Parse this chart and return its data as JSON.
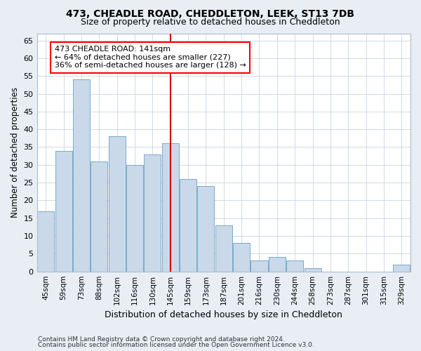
{
  "title1": "473, CHEADLE ROAD, CHEDDLETON, LEEK, ST13 7DB",
  "title2": "Size of property relative to detached houses in Cheddleton",
  "xlabel": "Distribution of detached houses by size in Cheddleton",
  "ylabel": "Number of detached properties",
  "footer1": "Contains HM Land Registry data © Crown copyright and database right 2024.",
  "footer2": "Contains public sector information licensed under the Open Government Licence v3.0.",
  "categories": [
    "45sqm",
    "59sqm",
    "73sqm",
    "88sqm",
    "102sqm",
    "116sqm",
    "130sqm",
    "145sqm",
    "159sqm",
    "173sqm",
    "187sqm",
    "201sqm",
    "216sqm",
    "230sqm",
    "244sqm",
    "258sqm",
    "273sqm",
    "287sqm",
    "301sqm",
    "315sqm",
    "329sqm"
  ],
  "values": [
    17,
    34,
    54,
    31,
    38,
    30,
    33,
    36,
    26,
    24,
    13,
    8,
    3,
    4,
    3,
    1,
    0,
    0,
    0,
    0,
    2
  ],
  "bar_color": "#c9d9ea",
  "bar_edge_color": "#7aaac8",
  "vline_color": "#cc0000",
  "annotation_title": "473 CHEADLE ROAD: 141sqm",
  "annotation_line1": "← 64% of detached houses are smaller (227)",
  "annotation_line2": "36% of semi-detached houses are larger (128) →",
  "ylim": [
    0,
    67
  ],
  "yticks": [
    0,
    5,
    10,
    15,
    20,
    25,
    30,
    35,
    40,
    45,
    50,
    55,
    60,
    65
  ],
  "bg_color": "#e8eef4",
  "plot_bg_color": "#ffffff",
  "grid_color": "#c8d4de"
}
